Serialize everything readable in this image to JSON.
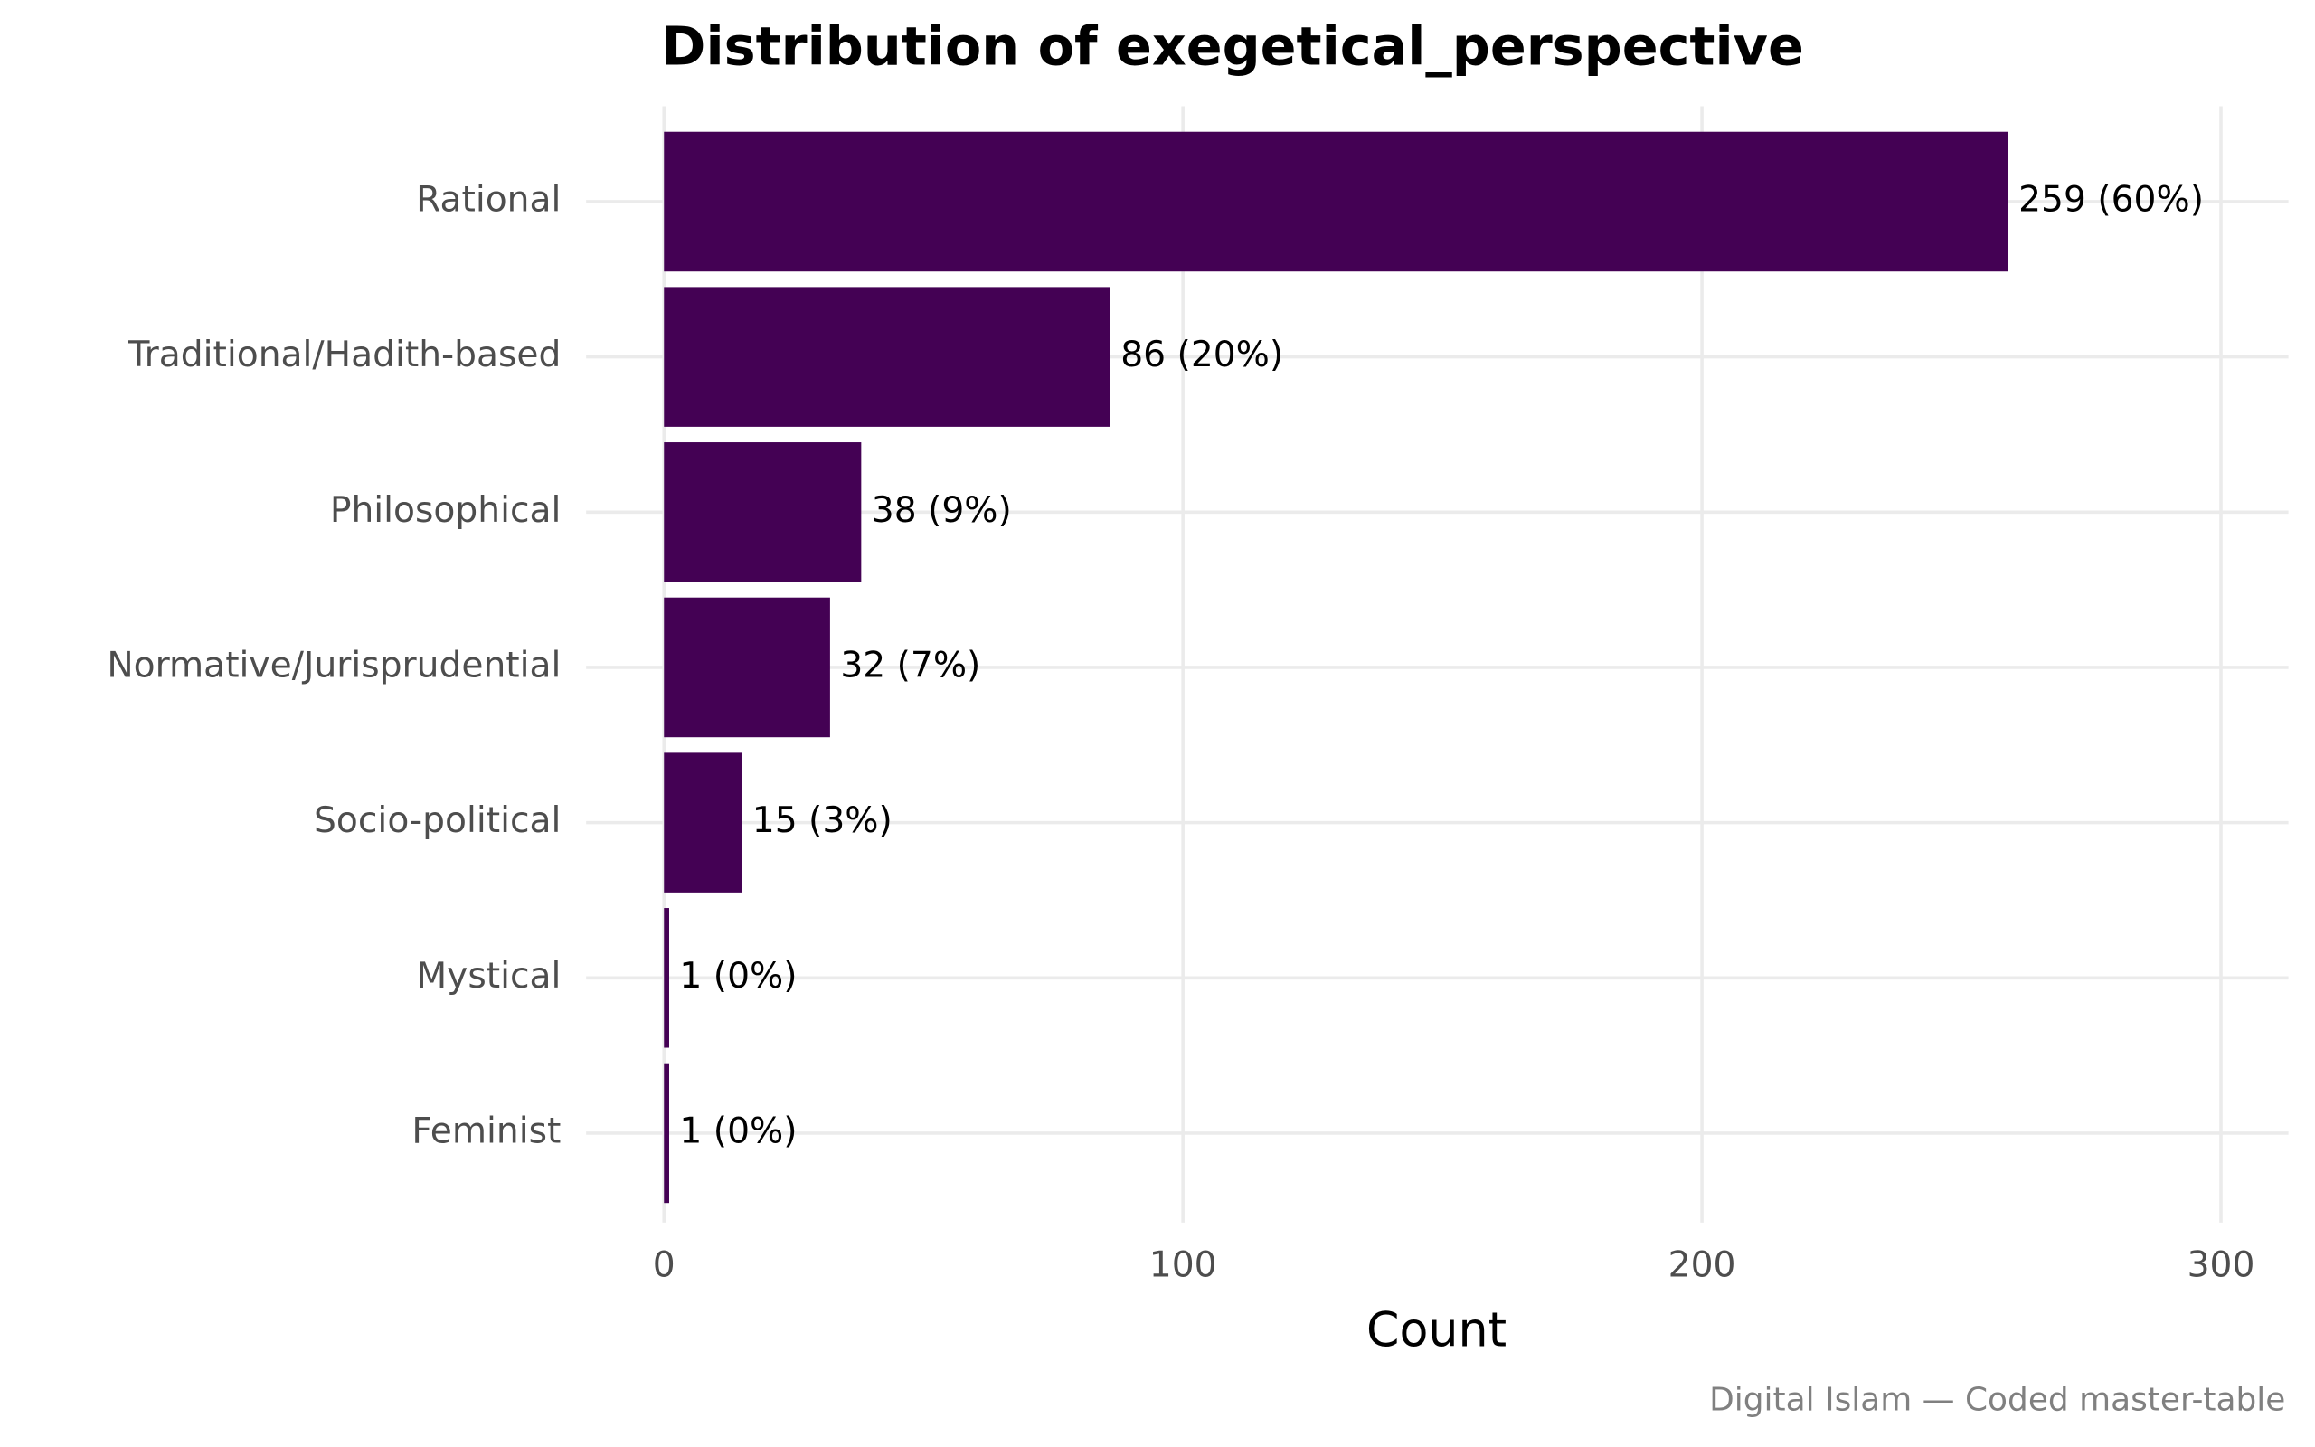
{
  "chart_data": {
    "type": "bar",
    "orientation": "horizontal",
    "title": "Distribution of exegetical_perspective",
    "x_label": "Count",
    "caption": "Digital Islam — Coded master-table",
    "categories": [
      "Rational",
      "Traditional/Hadith-based",
      "Philosophical",
      "Normative/Jurisprudential",
      "Socio-political",
      "Mystical",
      "Feminist"
    ],
    "values": [
      259,
      86,
      38,
      32,
      15,
      1,
      1
    ],
    "value_labels": [
      "259 (60%)",
      "86 (20%)",
      "38 (9%)",
      "32 (7%)",
      "15 (3%)",
      "1 (0%)",
      "1 (0%)"
    ],
    "color": "#440154",
    "xlim": [
      -15,
      313
    ],
    "xticks": [
      0,
      100,
      200,
      300
    ],
    "grid": true
  }
}
